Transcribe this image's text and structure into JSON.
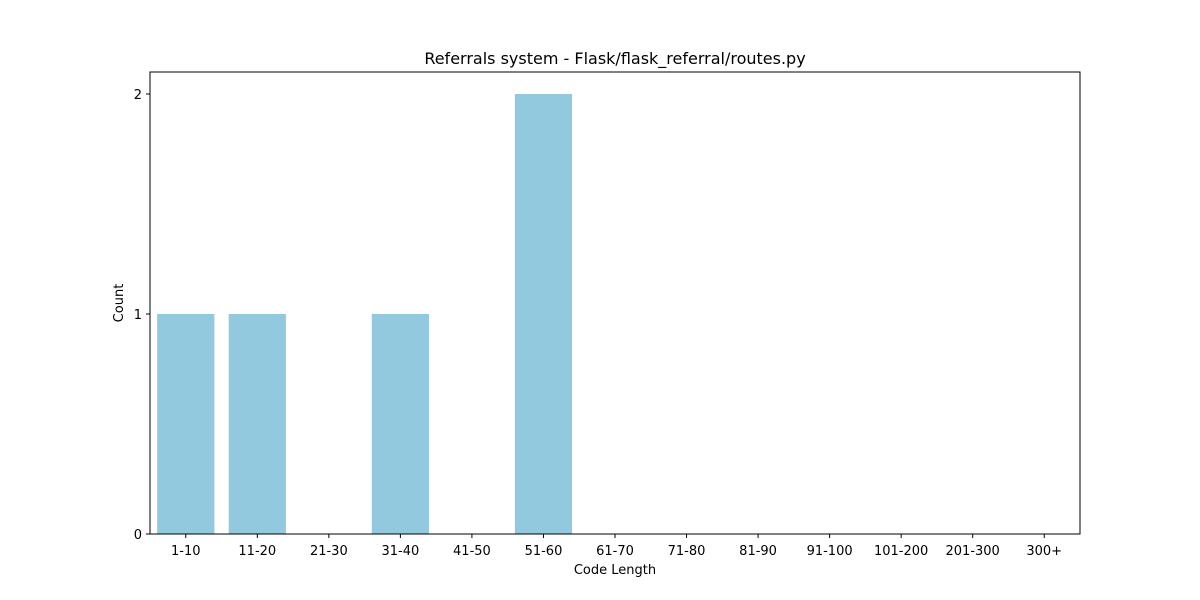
{
  "chart_data": {
    "type": "bar",
    "title": "Referrals system - Flask/flask_referral/routes.py",
    "xlabel": "Code Length",
    "ylabel": "Count",
    "categories": [
      "1-10",
      "11-20",
      "21-30",
      "31-40",
      "41-50",
      "51-60",
      "61-70",
      "71-80",
      "81-90",
      "91-100",
      "101-200",
      "201-300",
      "300+"
    ],
    "values": [
      1,
      1,
      0,
      1,
      0,
      2,
      0,
      0,
      0,
      0,
      0,
      0,
      0
    ],
    "yticks": [
      "0",
      "1",
      "2"
    ],
    "ylim": [
      0,
      2.1
    ],
    "grid": false,
    "legend": "none",
    "bar_color": "#92c9df"
  }
}
